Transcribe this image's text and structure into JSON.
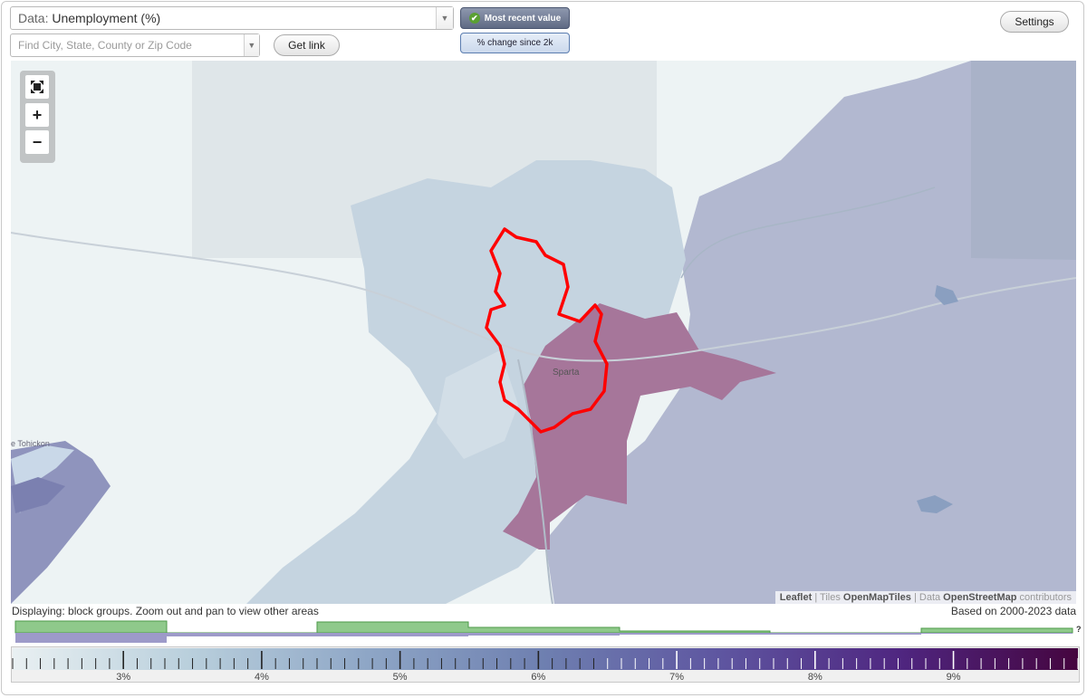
{
  "toolbar": {
    "data_prefix": "Data:",
    "data_value": "Unemployment (%)",
    "search_placeholder": "Find City, State, County or Zip Code",
    "get_link_label": "Get link",
    "mode_recent_label": "Most recent value",
    "mode_change_label": "% change since 2k",
    "settings_label": "Settings"
  },
  "map": {
    "place_label": "Sparta",
    "river_label": "e Tohickon",
    "highlight_color": "#ff0000",
    "high_value_color": "#a6769a",
    "zoom_in_symbol": "+",
    "zoom_out_symbol": "−",
    "fullscreen_icon": "fullscreen-icon"
  },
  "attribution": {
    "leaflet": "Leaflet",
    "sep1": " | Tiles ",
    "tiles": "OpenMapTiles",
    "sep2": " | Data ",
    "data": "OpenStreetMap",
    "suffix": " contributors"
  },
  "status": {
    "left": "Displaying: block groups. Zoom out and pan to view other areas",
    "right": "Based on 2000-2023 data"
  },
  "histogram": {
    "question_mark": "?",
    "colors": {
      "green": "#8fc98b",
      "purple": "#9d9ac9"
    }
  },
  "legend": {
    "min": 2.2,
    "max": 9.9,
    "ticks": [
      "3%",
      "4%",
      "5%",
      "6%",
      "7%",
      "8%",
      "9%"
    ],
    "tick_values": [
      3,
      4,
      5,
      6,
      7,
      8,
      9
    ],
    "gradient_colors": [
      "#e9f0f2",
      "#b9cfdc",
      "#8ea6c6",
      "#6e7fb0",
      "#5e55a0",
      "#4f2680",
      "#45053f"
    ]
  }
}
